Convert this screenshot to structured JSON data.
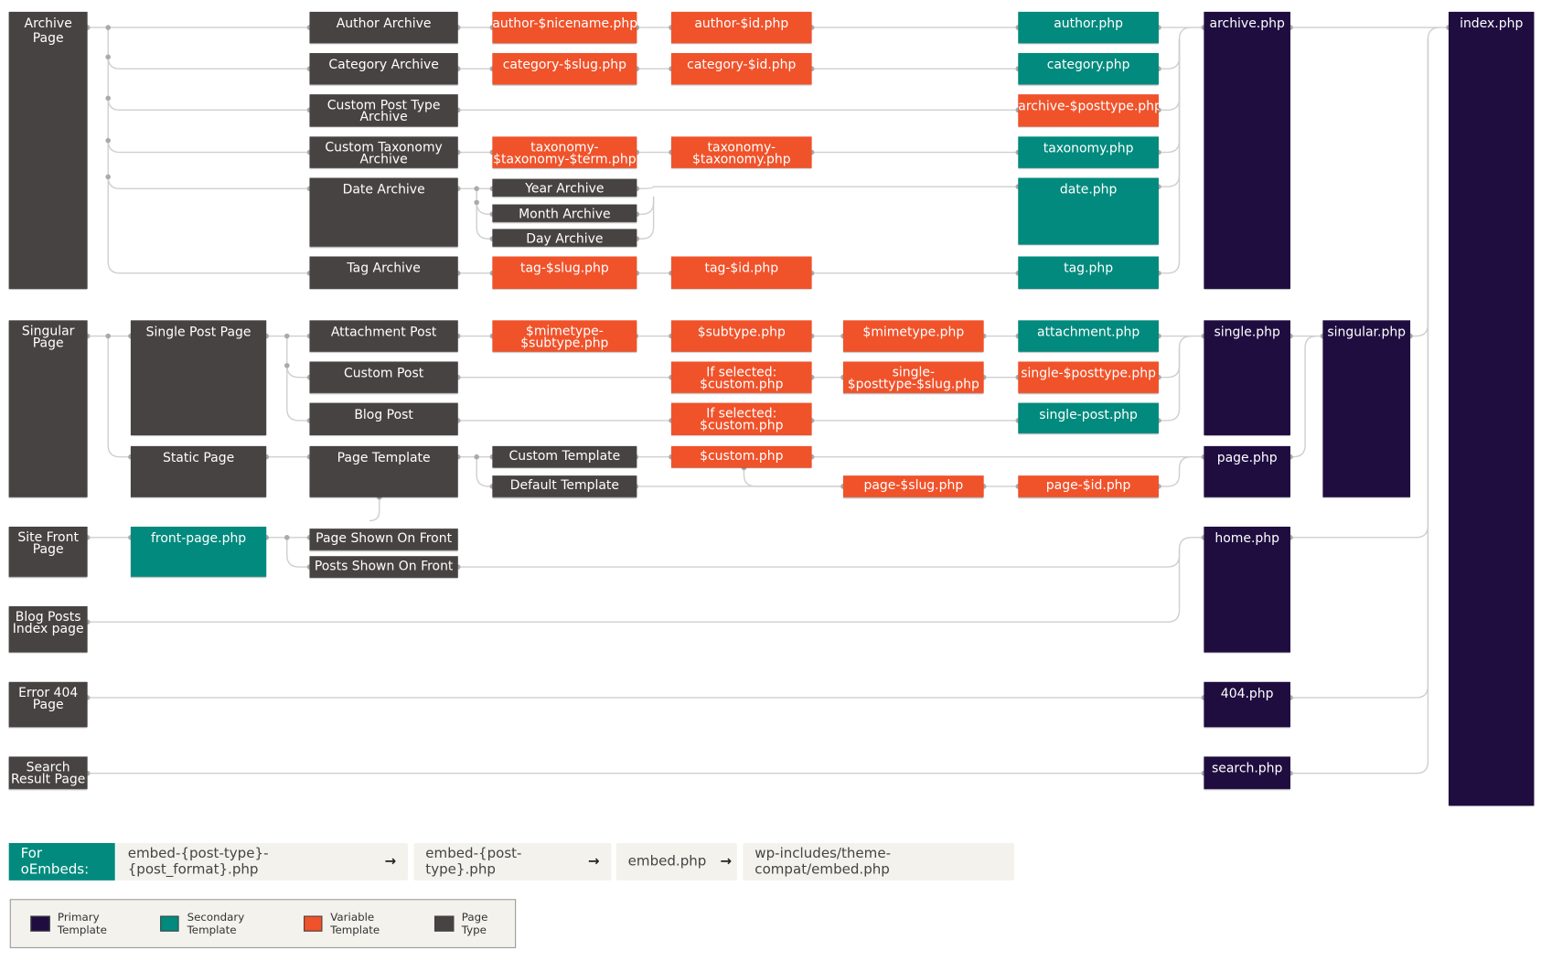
{
  "colors": {
    "primary": "#1f0d40",
    "secondary": "#018a7d",
    "variable": "#f0522a",
    "page": "#474342",
    "wire": "#cfcfcf"
  },
  "boxes": {
    "archive_page": {
      "label": "Archive Page",
      "type": "page"
    },
    "singular_page": {
      "label": "Singular\nPage",
      "type": "page"
    },
    "site_front": {
      "label": "Site Front\nPage",
      "type": "page"
    },
    "blog_index": {
      "label": "Blog Posts\nIndex page",
      "type": "page"
    },
    "error404": {
      "label": "Error 404\nPage",
      "type": "page"
    },
    "search_page": {
      "label": "Search\nResult Page",
      "type": "page"
    },
    "single_post_page": {
      "label": "Single Post Page",
      "type": "page"
    },
    "static_page": {
      "label": "Static Page",
      "type": "page"
    },
    "front_page_php": {
      "label": "front-page.php",
      "type": "secondary"
    },
    "author_archive": {
      "label": "Author Archive",
      "type": "page"
    },
    "category_archive": {
      "label": "Category Archive",
      "type": "page"
    },
    "cpt_archive": {
      "label": "Custom Post Type\nArchive",
      "type": "page"
    },
    "tax_archive": {
      "label": "Custom Taxonomy\nArchive",
      "type": "page"
    },
    "date_archive": {
      "label": "Date Archive",
      "type": "page"
    },
    "tag_archive": {
      "label": "Tag Archive",
      "type": "page"
    },
    "attachment_post": {
      "label": "Attachment Post",
      "type": "page"
    },
    "custom_post": {
      "label": "Custom Post",
      "type": "page"
    },
    "blog_post": {
      "label": "Blog Post",
      "type": "page"
    },
    "page_template": {
      "label": "Page Template",
      "type": "page"
    },
    "page_on_front": {
      "label": "Page Shown On Front",
      "type": "page"
    },
    "posts_on_front": {
      "label": "Posts Shown On Front",
      "type": "page"
    },
    "author_nicename": {
      "label": "author-$nicename.php",
      "type": "variable"
    },
    "category_slug": {
      "label": "category-$slug.php",
      "type": "variable"
    },
    "taxonomy_term": {
      "label": "taxonomy-\n$taxonomy-$term.php",
      "type": "variable"
    },
    "year_archive": {
      "label": "Year Archive",
      "type": "page"
    },
    "month_archive": {
      "label": "Month Archive",
      "type": "page"
    },
    "day_archive": {
      "label": "Day Archive",
      "type": "page"
    },
    "tag_slug": {
      "label": "tag-$slug.php",
      "type": "variable"
    },
    "mimetype_subtype": {
      "label": "$mimetype-\n$subtype.php",
      "type": "variable"
    },
    "custom_template": {
      "label": "Custom Template",
      "type": "page"
    },
    "default_template": {
      "label": "Default Template",
      "type": "page"
    },
    "author_id": {
      "label": "author-$id.php",
      "type": "variable"
    },
    "category_id": {
      "label": "category-$id.php",
      "type": "variable"
    },
    "taxonomy_tax": {
      "label": "taxonomy-\n$taxonomy.php",
      "type": "variable"
    },
    "tag_id": {
      "label": "tag-$id.php",
      "type": "variable"
    },
    "subtype_php": {
      "label": "$subtype.php",
      "type": "variable"
    },
    "if_selected_1": {
      "label": "If selected:\n$custom.php",
      "type": "variable"
    },
    "if_selected_2": {
      "label": "If selected:\n$custom.php",
      "type": "variable"
    },
    "custom_php": {
      "label": "$custom.php",
      "type": "variable"
    },
    "mimetype_php": {
      "label": "$mimetype.php",
      "type": "variable"
    },
    "single_posttype_slug": {
      "label": "single-\n$posttype-$slug.php",
      "type": "variable"
    },
    "page_slug": {
      "label": "page-$slug.php",
      "type": "variable"
    },
    "author_php": {
      "label": "author.php",
      "type": "secondary"
    },
    "category_php": {
      "label": "category.php",
      "type": "secondary"
    },
    "archive_posttype": {
      "label": "archive-$posttype.php",
      "type": "variable"
    },
    "taxonomy_php": {
      "label": "taxonomy.php",
      "type": "secondary"
    },
    "date_php": {
      "label": "date.php",
      "type": "secondary"
    },
    "tag_php": {
      "label": "tag.php",
      "type": "secondary"
    },
    "attachment_php": {
      "label": "attachment.php",
      "type": "secondary"
    },
    "single_posttype": {
      "label": "single-$posttype.php",
      "type": "variable"
    },
    "single_post_php": {
      "label": "single-post.php",
      "type": "secondary"
    },
    "page_id": {
      "label": "page-$id.php",
      "type": "variable"
    },
    "archive_php": {
      "label": "archive.php",
      "type": "primary"
    },
    "single_php": {
      "label": "single.php",
      "type": "primary"
    },
    "page_php": {
      "label": "page.php",
      "type": "primary"
    },
    "home_php": {
      "label": "home.php",
      "type": "primary"
    },
    "php404": {
      "label": "404.php",
      "type": "primary"
    },
    "search_php": {
      "label": "search.php",
      "type": "primary"
    },
    "singular_php": {
      "label": "singular.php",
      "type": "primary"
    },
    "index_php": {
      "label": "index.php",
      "type": "primary"
    }
  },
  "embeds": {
    "label": "For oEmbeds:",
    "items": [
      "embed-{post-type}-{post_format}.php",
      "embed-{post-type}.php",
      "embed.php",
      "wp-includes/theme-compat/embed.php"
    ],
    "arrow": "→"
  },
  "legend": [
    {
      "label": "Primary Template",
      "type": "primary"
    },
    {
      "label": "Secondary Template",
      "type": "secondary"
    },
    {
      "label": "Variable Template",
      "type": "variable"
    },
    {
      "label": "Page Type",
      "type": "page"
    }
  ]
}
